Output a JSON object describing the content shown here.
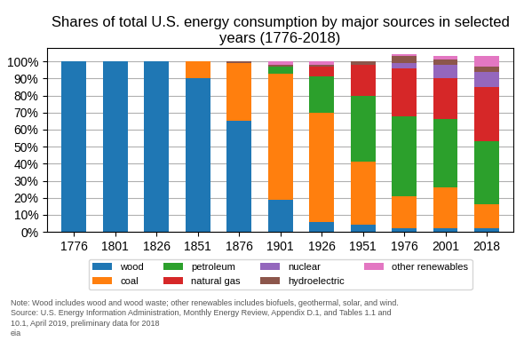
{
  "chart_data": {
    "type": "bar",
    "stacked": true,
    "title": "Shares of total U.S. energy consumption by major sources in selected\nyears (1776-2018)",
    "categories": [
      "1776",
      "1801",
      "1826",
      "1851",
      "1876",
      "1901",
      "1926",
      "1951",
      "1976",
      "2001",
      "2018"
    ],
    "series": [
      {
        "name": "wood",
        "values": [
          100,
          100,
          100,
          90,
          65,
          19,
          6,
          4,
          2,
          2,
          2
        ]
      },
      {
        "name": "coal",
        "values": [
          0,
          0,
          0,
          10,
          34,
          74,
          64,
          37,
          19,
          24,
          14
        ]
      },
      {
        "name": "petroleum",
        "values": [
          0,
          0,
          0,
          0,
          0,
          4,
          21,
          39,
          47,
          40,
          37
        ]
      },
      {
        "name": "natural gas",
        "values": [
          0,
          0,
          0,
          0,
          0,
          0,
          6,
          18,
          28,
          24,
          32
        ]
      },
      {
        "name": "nuclear",
        "values": [
          0,
          0,
          0,
          0,
          0,
          0,
          0,
          0,
          3,
          8,
          9
        ]
      },
      {
        "name": "hydroelectric",
        "values": [
          0,
          0,
          0,
          0,
          1,
          1,
          1,
          2,
          4,
          3,
          3
        ]
      },
      {
        "name": "other renewables",
        "values": [
          0,
          0,
          0,
          0,
          0,
          2,
          2,
          0,
          1,
          2,
          6
        ]
      }
    ],
    "ylim": [
      0,
      108
    ],
    "yticks": [
      {
        "value": 0,
        "label": "0%"
      },
      {
        "value": 10,
        "label": "10%"
      },
      {
        "value": 20,
        "label": "20%"
      },
      {
        "value": 30,
        "label": "30%"
      },
      {
        "value": 40,
        "label": "40%"
      },
      {
        "value": 50,
        "label": "50%"
      },
      {
        "value": 60,
        "label": "60%"
      },
      {
        "value": 70,
        "label": "70%"
      },
      {
        "value": 80,
        "label": "80%"
      },
      {
        "value": 90,
        "label": "90%"
      },
      {
        "value": 100,
        "label": "100%"
      }
    ],
    "grid": true,
    "legend": "upper center",
    "annotations": [
      "Note: Wood includes wood and wood waste; other renewables includes biofuels, geothermal, solar, and wind.",
      "Source: U.S. Energy Information Administration, Monthly Energy Review, Appendix D.1, and Tables 1.1 and",
      "10.1, April 2019, preliminary data for 2018",
      "eia"
    ]
  }
}
